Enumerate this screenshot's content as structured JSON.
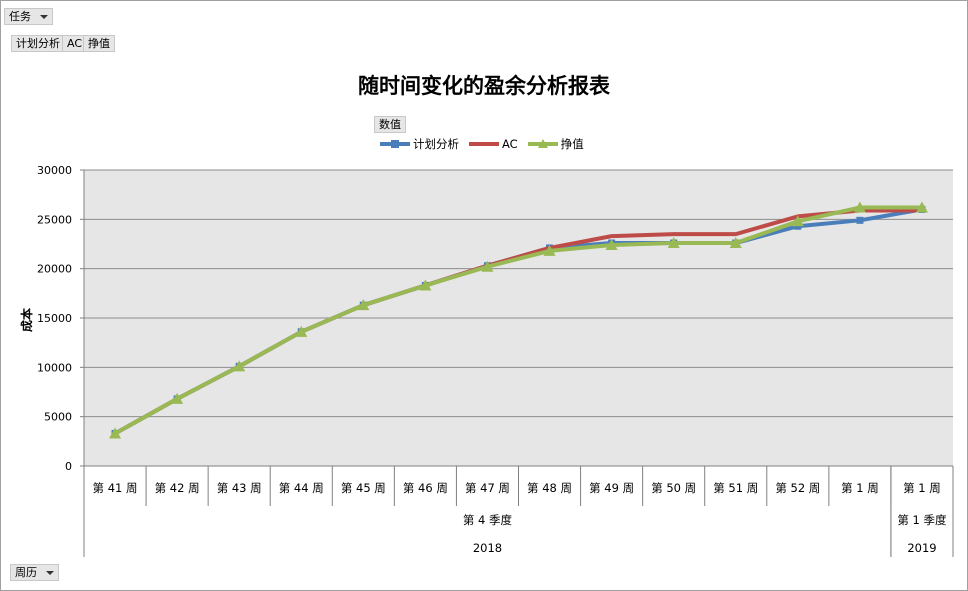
{
  "filters": {
    "task_label": "任务",
    "series_buttons": [
      "计划分析",
      "AC",
      "挣值"
    ],
    "values_label": "数值",
    "calendar_label": "周历"
  },
  "colors": {
    "plot_bg": "#e6e6e6",
    "grid": "#8c8c8c",
    "planned": "#4a7ebb",
    "ac": "#be4b48",
    "ev": "#98b954"
  },
  "chart_data": {
    "type": "line",
    "title": "随时间变化的盈余分析报表",
    "xlabel": "",
    "ylabel": "成本",
    "ylim": [
      0,
      30000
    ],
    "yticks": [
      0,
      5000,
      10000,
      15000,
      20000,
      25000,
      30000
    ],
    "grid": true,
    "legend_position": "top",
    "categories": [
      "第 41 周",
      "第 42 周",
      "第 43 周",
      "第 44 周",
      "第 45 周",
      "第 46 周",
      "第 47 周",
      "第 48 周",
      "第 49 周",
      "第 50 周",
      "第 51 周",
      "第 52 周",
      "第 1 周",
      "第 1 周"
    ],
    "category_groups": [
      {
        "quarter": "第 4 季度",
        "year": "2018",
        "count": 13
      },
      {
        "quarter": "第 1 季度",
        "year": "2019",
        "count": 1
      }
    ],
    "series": [
      {
        "name": "计划分析",
        "color_key": "planned",
        "marker": "square",
        "values": [
          3300,
          6800,
          10100,
          13600,
          16300,
          18300,
          20300,
          22100,
          22600,
          22600,
          22600,
          24300,
          24900,
          26000
        ]
      },
      {
        "name": "AC",
        "color_key": "ac",
        "marker": "none",
        "values": [
          3300,
          6800,
          10100,
          13600,
          16300,
          18300,
          20300,
          22100,
          23300,
          23500,
          23500,
          25300,
          25900,
          25900
        ]
      },
      {
        "name": "挣值",
        "color_key": "ev",
        "marker": "triangle",
        "values": [
          3300,
          6800,
          10100,
          13600,
          16300,
          18300,
          20200,
          21800,
          22400,
          22600,
          22600,
          24800,
          26200,
          26200
        ]
      }
    ]
  }
}
